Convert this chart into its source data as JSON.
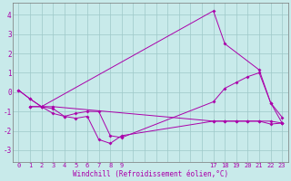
{
  "xlabel": "Windchill (Refroidissement éolien,°C)",
  "bg_color": "#c8eaea",
  "line_color": "#aa00aa",
  "grid_color": "#9ec8c8",
  "ylim": [
    -3.6,
    4.6
  ],
  "xlim": [
    -0.5,
    23.5
  ],
  "yticks": [
    -3,
    -2,
    -1,
    0,
    1,
    2,
    3,
    4
  ],
  "xtick_positions": [
    0,
    1,
    2,
    3,
    4,
    5,
    6,
    7,
    8,
    9,
    17,
    18,
    19,
    20,
    21,
    22,
    23
  ],
  "xtick_labels": [
    "0",
    "1",
    "2",
    "3",
    "4",
    "5",
    "6",
    "7",
    "8",
    "9",
    "17",
    "18",
    "19",
    "20",
    "21",
    "22",
    "23"
  ],
  "grid_xticks": [
    0,
    1,
    2,
    3,
    4,
    5,
    6,
    7,
    8,
    9,
    10,
    11,
    12,
    13,
    14,
    15,
    16,
    17,
    18,
    19,
    20,
    21,
    22,
    23
  ],
  "lines": [
    {
      "x": [
        0,
        1,
        2,
        17,
        18,
        21,
        22,
        23
      ],
      "y": [
        0.1,
        -0.35,
        -0.75,
        4.2,
        2.5,
        1.15,
        -0.55,
        -1.3
      ]
    },
    {
      "x": [
        0,
        1,
        2,
        3,
        4,
        5,
        6,
        7,
        8,
        9,
        17,
        18,
        19,
        20,
        21,
        22,
        23
      ],
      "y": [
        0.1,
        -0.35,
        -0.75,
        -0.85,
        -1.25,
        -1.35,
        -1.25,
        -2.45,
        -2.65,
        -2.25,
        -1.5,
        -1.5,
        -1.5,
        -1.5,
        -1.5,
        -1.65,
        -1.6
      ]
    },
    {
      "x": [
        1,
        2,
        3,
        4,
        5,
        6,
        7,
        8,
        9,
        17,
        18,
        19,
        20,
        21,
        22,
        23
      ],
      "y": [
        -0.75,
        -0.75,
        -1.1,
        -1.25,
        -1.1,
        -1.0,
        -1.0,
        -2.25,
        -2.35,
        -0.5,
        0.2,
        0.5,
        0.8,
        1.0,
        -0.55,
        -1.6
      ]
    },
    {
      "x": [
        1,
        2,
        3,
        17,
        18,
        19,
        20,
        21,
        22,
        23
      ],
      "y": [
        -0.75,
        -0.75,
        -0.75,
        -1.5,
        -1.5,
        -1.5,
        -1.5,
        -1.5,
        -1.5,
        -1.6
      ]
    }
  ]
}
